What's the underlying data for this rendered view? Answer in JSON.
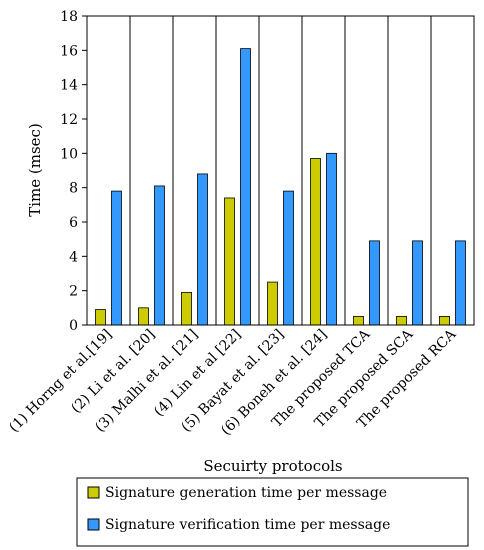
{
  "chart_data": {
    "type": "bar",
    "title": "",
    "xlabel": "Secuirty protocols",
    "ylabel": "Time (msec)",
    "ylim": [
      0,
      18
    ],
    "yticks": [
      0,
      2,
      4,
      6,
      8,
      10,
      12,
      14,
      16,
      18
    ],
    "grid": "vertical category separators",
    "legend_position": "bottom",
    "categories": [
      "(1) Horng et al.[19]",
      "(2) Li et al.   [20]",
      "(3) Malhi et al. [21]",
      "(4) Lin et al [22]",
      "(5) Bayat et al. [23]",
      "(6) Boneh et al. [24]",
      "The proposed TCA",
      "The proposed SCA",
      "The proposed RCA"
    ],
    "series": [
      {
        "name": "Signature generation time  per message",
        "color": "#CCCC00",
        "values": [
          0.9,
          1.0,
          1.9,
          7.4,
          2.5,
          9.7,
          0.5,
          0.5,
          0.5
        ]
      },
      {
        "name": "Signature verification time  per message",
        "color": "#3399FF",
        "values": [
          7.8,
          8.1,
          8.8,
          16.1,
          7.8,
          10.0,
          4.9,
          4.9,
          4.9
        ]
      }
    ]
  }
}
